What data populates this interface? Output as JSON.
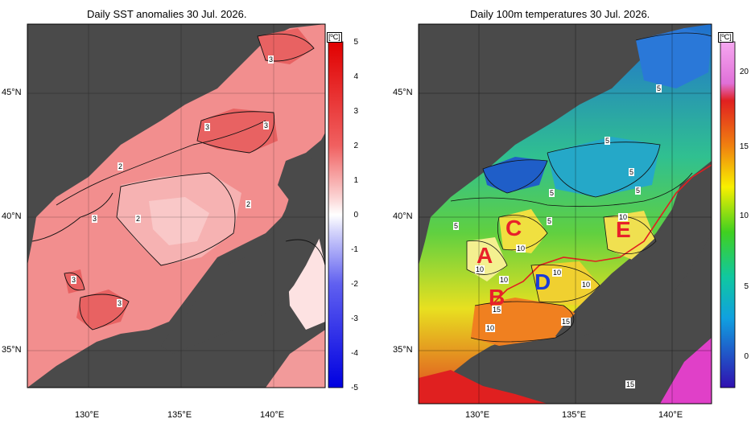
{
  "left_panel": {
    "title": "Daily SST anomalies 30 Jul. 2026.",
    "unit": "[ºC]",
    "colorbar_ticks": [
      "5",
      "4",
      "3",
      "2",
      "1",
      "0",
      "-1",
      "-2",
      "-3",
      "-4",
      "-5"
    ],
    "contour_labels": [
      "3",
      "3",
      "3",
      "2",
      "2",
      "3",
      "2",
      "3",
      "3"
    ]
  },
  "right_panel": {
    "title": "Daily 100m temperatures 30 Jul. 2026.",
    "unit": "[ºC]",
    "colorbar_ticks": [
      "20",
      "15",
      "10",
      "5",
      "0"
    ],
    "contour_labels": [
      "5",
      "5",
      "5",
      "5",
      "5",
      "5",
      "5",
      "10",
      "10",
      "10",
      "10",
      "10",
      "10",
      "15",
      "15",
      "10",
      "15"
    ],
    "region_letters": [
      {
        "text": "A",
        "color": "#e8202a"
      },
      {
        "text": "B",
        "color": "#e8202a"
      },
      {
        "text": "C",
        "color": "#e8202a"
      },
      {
        "text": "D",
        "color": "#1a3ad8"
      },
      {
        "text": "E",
        "color": "#e8202a"
      }
    ]
  },
  "axes": {
    "lat_ticks": [
      "45°N",
      "40°N",
      "35°N"
    ],
    "lon_ticks": [
      "130°E",
      "135°E",
      "140°E"
    ]
  },
  "colors": {
    "land": "#4a4a4a",
    "anomaly_warm": "#f08d8d",
    "anomaly_hot": "#e34a4a"
  }
}
